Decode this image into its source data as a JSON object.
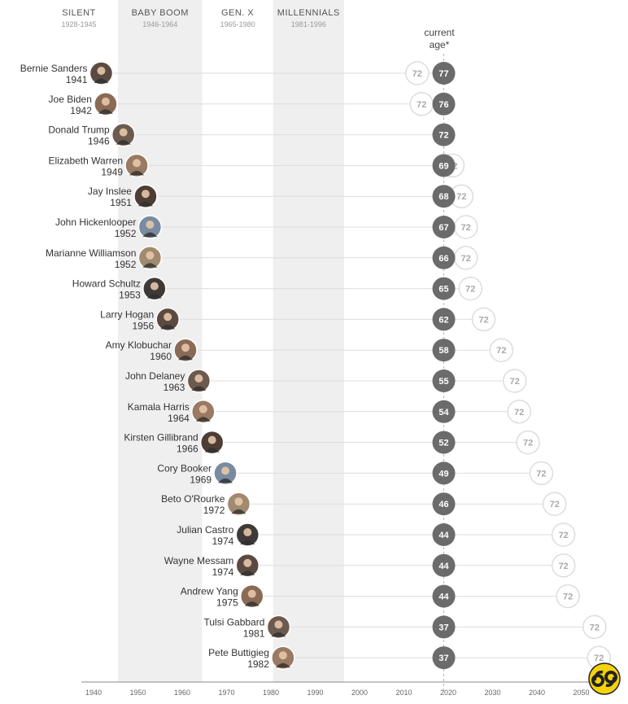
{
  "generations": [
    {
      "name": "SILENT",
      "range": "1928-1945",
      "start": 1928,
      "end": 1945,
      "shaded": false
    },
    {
      "name": "BABY BOOM",
      "range": "1946-1964",
      "start": 1946,
      "end": 1964,
      "shaded": true
    },
    {
      "name": "GEN. X",
      "range": "1965-1980",
      "start": 1965,
      "end": 1980,
      "shaded": false
    },
    {
      "name": "MILLENNIALS",
      "range": "1981-1996",
      "start": 1981,
      "end": 1996,
      "shaded": true
    }
  ],
  "current_age_label": [
    "current",
    "age*"
  ],
  "chart_data": {
    "type": "scatter",
    "title": "",
    "xlabel": "",
    "ylabel": "",
    "xlim": [
      1938,
      2055
    ],
    "x_ticks": [
      1940,
      1950,
      1960,
      1970,
      1980,
      1990,
      2000,
      2010,
      2020,
      2030,
      2040,
      2050
    ],
    "current_year": 2019,
    "milestone_age": 72,
    "candidates": [
      {
        "name": "Bernie Sanders",
        "birth_year": 1941,
        "current_age": 77,
        "age_72_label": "72"
      },
      {
        "name": "Joe Biden",
        "birth_year": 1942,
        "current_age": 76,
        "age_72_label": "72"
      },
      {
        "name": "Donald Trump",
        "birth_year": 1946,
        "current_age": 72,
        "age_72_label": ""
      },
      {
        "name": "Elizabeth Warren",
        "birth_year": 1949,
        "current_age": 69,
        "age_72_label": "72"
      },
      {
        "name": "Jay Inslee",
        "birth_year": 1951,
        "current_age": 68,
        "age_72_label": "72"
      },
      {
        "name": "John Hickenlooper",
        "birth_year": 1952,
        "current_age": 67,
        "age_72_label": "72"
      },
      {
        "name": "Marianne Williamson",
        "birth_year": 1952,
        "current_age": 66,
        "age_72_label": "72"
      },
      {
        "name": "Howard Schultz",
        "birth_year": 1953,
        "current_age": 65,
        "age_72_label": "72"
      },
      {
        "name": "Larry Hogan",
        "birth_year": 1956,
        "current_age": 62,
        "age_72_label": "72"
      },
      {
        "name": "Amy Klobuchar",
        "birth_year": 1960,
        "current_age": 58,
        "age_72_label": "72"
      },
      {
        "name": "John Delaney",
        "birth_year": 1963,
        "current_age": 55,
        "age_72_label": "72"
      },
      {
        "name": "Kamala Harris",
        "birth_year": 1964,
        "current_age": 54,
        "age_72_label": "72"
      },
      {
        "name": "Kirsten Gillibrand",
        "birth_year": 1966,
        "current_age": 52,
        "age_72_label": "72"
      },
      {
        "name": "Cory Booker",
        "birth_year": 1969,
        "current_age": 49,
        "age_72_label": "72"
      },
      {
        "name": "Beto O'Rourke",
        "birth_year": 1972,
        "current_age": 46,
        "age_72_label": "72"
      },
      {
        "name": "Julian Castro",
        "birth_year": 1974,
        "current_age": 44,
        "age_72_label": "72"
      },
      {
        "name": "Wayne Messam",
        "birth_year": 1974,
        "current_age": 44,
        "age_72_label": "72"
      },
      {
        "name": "Andrew Yang",
        "birth_year": 1975,
        "current_age": 44,
        "age_72_label": "72"
      },
      {
        "name": "Tulsi Gabbard",
        "birth_year": 1981,
        "current_age": 37,
        "age_72_label": "72"
      },
      {
        "name": "Pete Buttigieg",
        "birth_year": 1982,
        "current_age": 37,
        "age_72_label": "72"
      }
    ]
  },
  "colors": {
    "band": "#efefef",
    "age_dot": "#6b6b6b",
    "future_ring": "#dddddd",
    "logo_bg": "#f5d20a",
    "photo_palette": [
      "#5a4a42",
      "#8a6a55",
      "#6d5a4e",
      "#9a7a62",
      "#4e3d35",
      "#7a8aa0",
      "#a08a70",
      "#3f3a38"
    ]
  },
  "logo": {
    "name": "sixty-nine-logo-icon"
  }
}
